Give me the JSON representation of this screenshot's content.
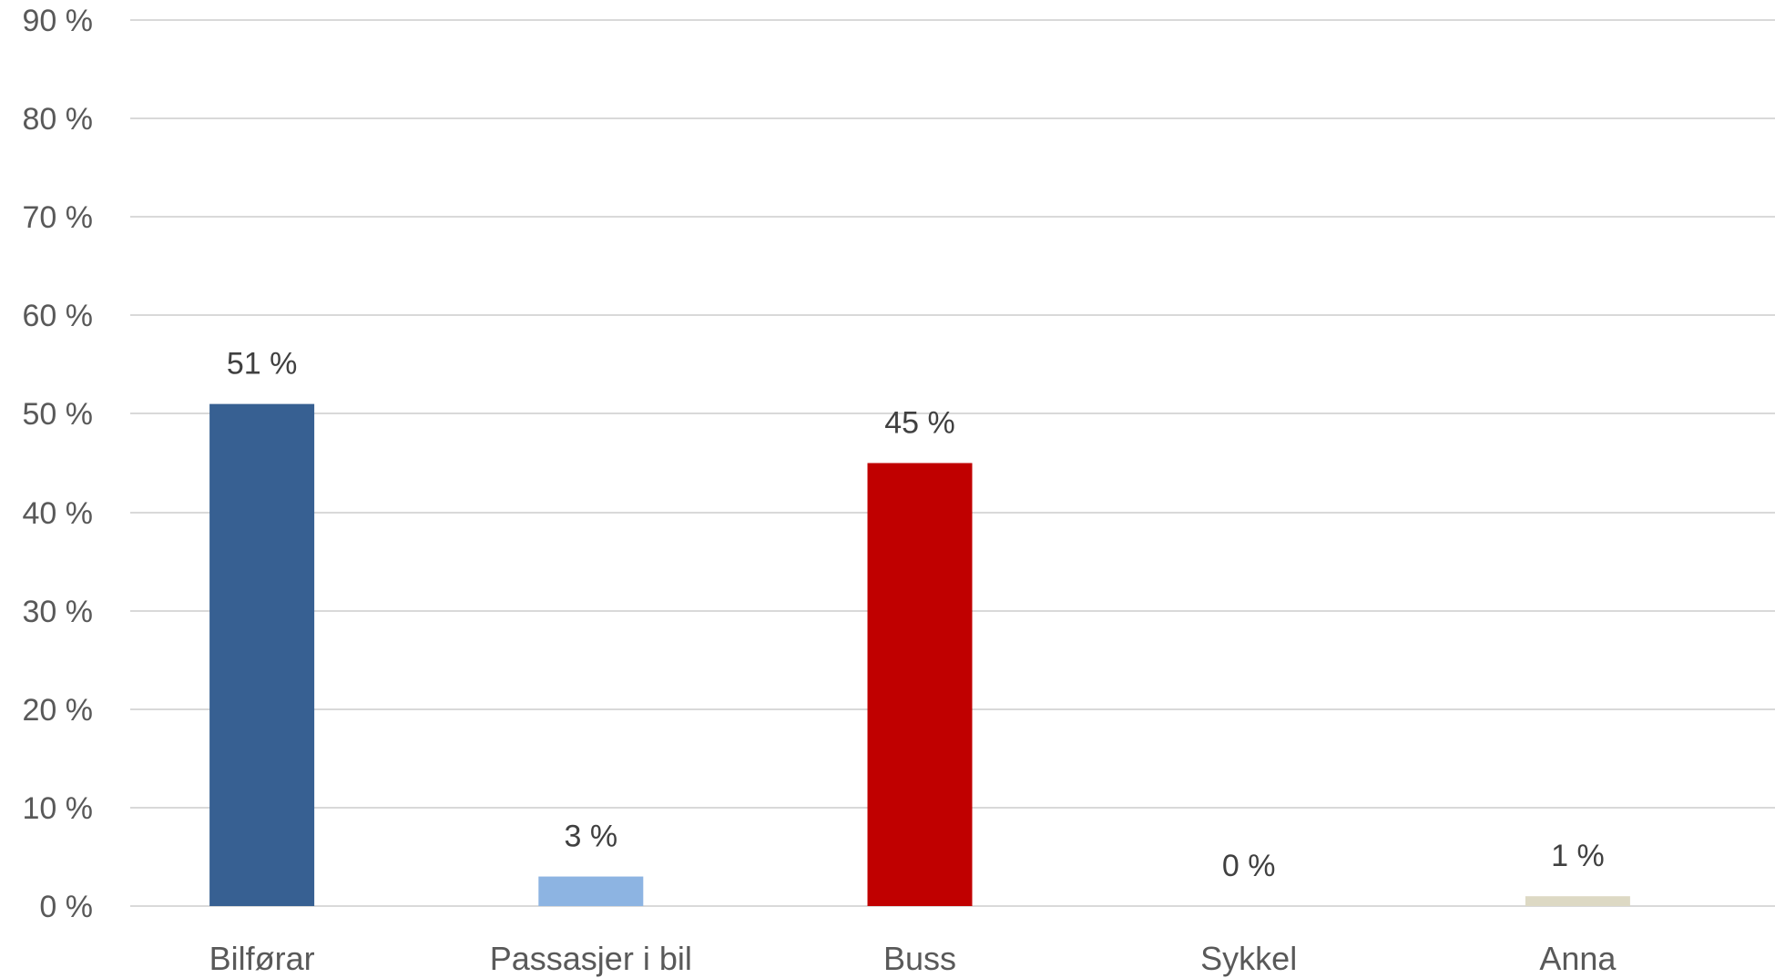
{
  "chart_data": {
    "type": "bar",
    "categories": [
      "Bilførar",
      "Passasjer i bil",
      "Buss",
      "Sykkel",
      "Anna"
    ],
    "values": [
      51,
      3,
      45,
      0,
      1
    ],
    "data_labels": [
      "51 %",
      "3 %",
      "45 %",
      "0 %",
      "1 %"
    ],
    "bar_colors": [
      "#376092",
      "#8db4e2",
      "#c00000",
      "#ffffff",
      "#ddd9c4"
    ],
    "ylim": [
      0,
      90
    ],
    "yticks": [
      0,
      10,
      20,
      30,
      40,
      50,
      60,
      70,
      80,
      90
    ],
    "ytick_labels": [
      "0 %",
      "10 %",
      "20 %",
      "30 %",
      "40 %",
      "50 %",
      "60 %",
      "70 %",
      "80 %",
      "90 %"
    ],
    "title": "",
    "xlabel": "",
    "ylabel": "",
    "grid": true,
    "legend": false
  }
}
